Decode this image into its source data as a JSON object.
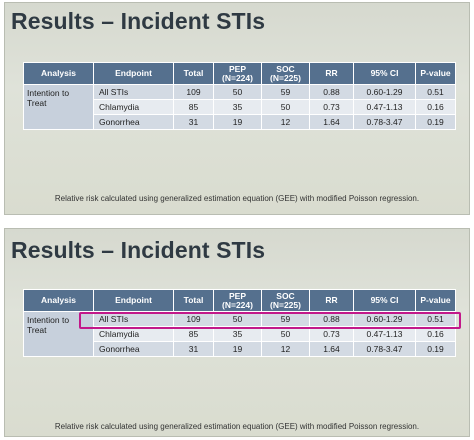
{
  "slides": [
    {
      "title": "Results – Incident STIs",
      "table": {
        "headers": [
          "Analysis",
          "Endpoint",
          "Total",
          "PEP\n(N=224)",
          "SOC\n(N=225)",
          "RR",
          "95% CI",
          "P-value"
        ],
        "analysis_label": "Intention to Treat",
        "rows": [
          [
            "All STIs",
            "109",
            "50",
            "59",
            "0.88",
            "0.60-1.29",
            "0.51"
          ],
          [
            "Chlamydia",
            "85",
            "35",
            "50",
            "0.73",
            "0.47-1.13",
            "0.16"
          ],
          [
            "Gonorrhea",
            "31",
            "19",
            "12",
            "1.64",
            "0.78-3.47",
            "0.19"
          ]
        ]
      },
      "footnote": "Relative risk calculated using generalized estimation equation (GEE) with modified Poisson regression."
    },
    {
      "title": "Results – Incident STIs",
      "table": {
        "headers": [
          "Analysis",
          "Endpoint",
          "Total",
          "PEP\n(N=224)",
          "SOC\n(N=225)",
          "RR",
          "95% CI",
          "P-value"
        ],
        "analysis_label": "Intention to Treat",
        "rows": [
          [
            "All STIs",
            "109",
            "50",
            "59",
            "0.88",
            "0.60-1.29",
            "0.51"
          ],
          [
            "Chlamydia",
            "85",
            "35",
            "50",
            "0.73",
            "0.47-1.13",
            "0.16"
          ],
          [
            "Gonorrhea",
            "31",
            "19",
            "12",
            "1.64",
            "0.78-3.47",
            "0.19"
          ]
        ]
      },
      "footnote": "Relative risk calculated using generalized estimation equation (GEE) with modified Poisson regression.",
      "highlighted_row": "All STIs"
    }
  ],
  "colors": {
    "header_bg": "#55708e",
    "highlight_border": "#c2188a",
    "title_text": "#2f3a43"
  }
}
